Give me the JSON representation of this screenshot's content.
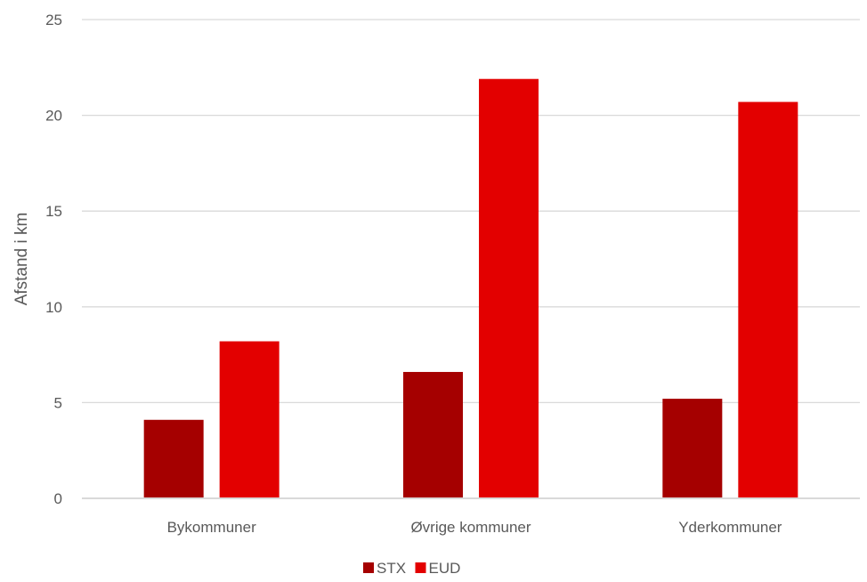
{
  "chart_data": {
    "type": "bar",
    "categories": [
      "Bykommuner",
      "Øvrige kommuner",
      "Yderkommuner"
    ],
    "series": [
      {
        "name": "STX",
        "values": [
          4.1,
          6.6,
          5.2
        ],
        "color": "#A50000"
      },
      {
        "name": "EUD",
        "values": [
          8.2,
          21.9,
          20.7
        ],
        "color": "#E30000"
      }
    ],
    "ylabel": "Afstand i km",
    "xlabel": "",
    "ylim": [
      0,
      25
    ],
    "yticks": [
      0,
      5,
      10,
      15,
      20,
      25
    ],
    "grid": true,
    "legend_position": "bottom"
  }
}
